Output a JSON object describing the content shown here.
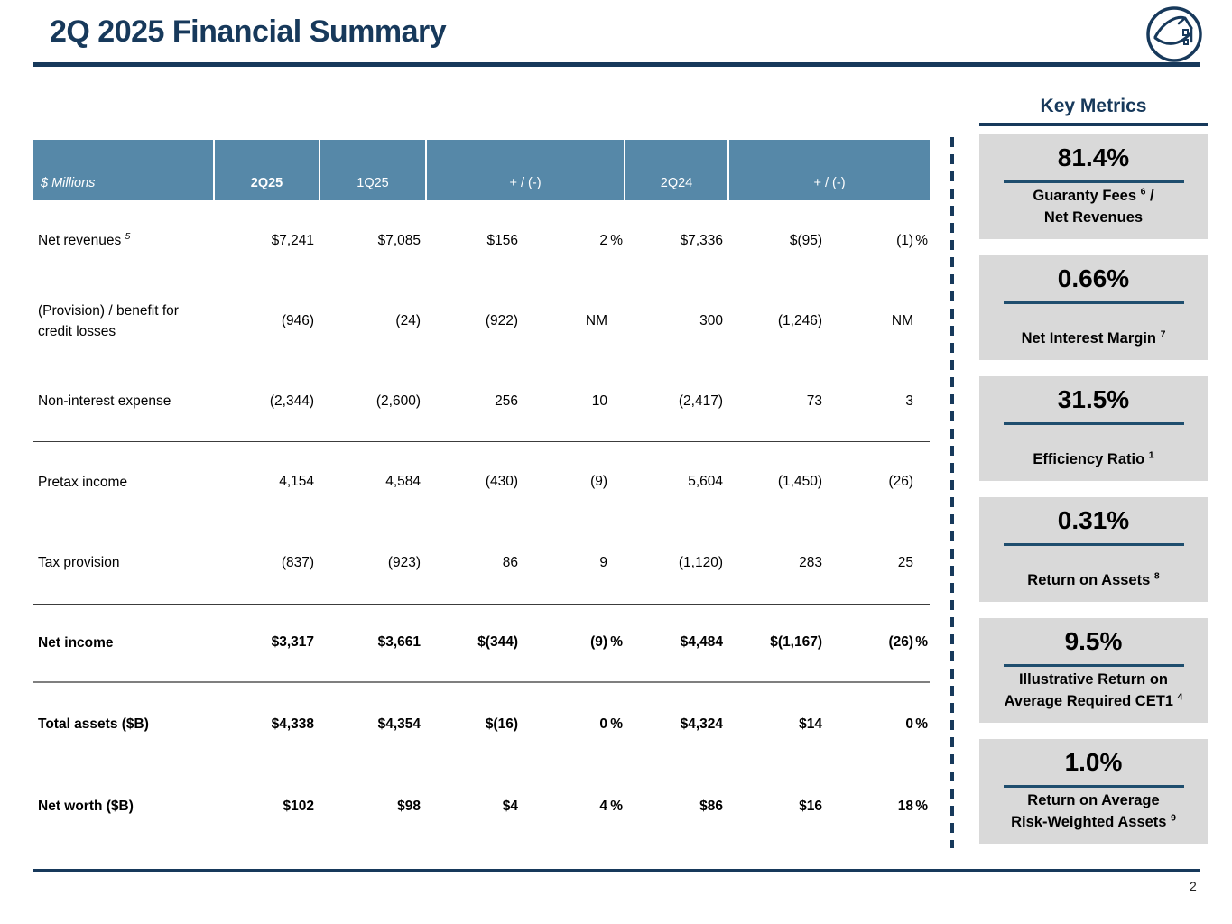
{
  "slide": {
    "title": "2Q 2025 Financial Summary",
    "page_number": "2",
    "logo": "fannie-mae-house-logo"
  },
  "colors": {
    "navy": "#17395B",
    "table_header_blue": "#5688A8",
    "metric_box_gray": "#D9D9D9",
    "metric_line_navy": "#1F4E6E"
  },
  "table": {
    "unit_label": "$ Millions",
    "column_headers": [
      "2Q25",
      "1Q25",
      "+ / (-)",
      "2Q24",
      "+ / (-)"
    ],
    "rows": [
      {
        "label": "Net revenues ^5^",
        "bold": false,
        "cells": [
          "$7,241",
          "$7,085",
          "$156",
          "2",
          "%",
          "$7,336",
          "$(95)",
          "(1)",
          "%"
        ]
      },
      {
        "label": "(Provision) / benefit for credit losses",
        "bold": false,
        "cells": [
          "(946)",
          "(24)",
          "(922)",
          "NM",
          "",
          "300",
          "(1,246)",
          "NM",
          ""
        ]
      },
      {
        "label": "Non-interest expense",
        "bold": false,
        "cells": [
          "(2,344)",
          "(2,600)",
          "256",
          "10",
          "",
          "(2,417)",
          "73",
          "3",
          ""
        ]
      },
      {
        "label": "Pretax income",
        "bold": false,
        "cells": [
          "4,154",
          "4,584",
          "(430)",
          "(9)",
          "",
          "5,604",
          "(1,450)",
          "(26)",
          ""
        ]
      },
      {
        "label": "Tax provision",
        "bold": false,
        "cells": [
          "(837)",
          "(923)",
          "86",
          "9",
          "",
          "(1,120)",
          "283",
          "25",
          ""
        ]
      },
      {
        "label": "Net income",
        "bold": true,
        "cells": [
          "$3,317",
          "$3,661",
          "$(344)",
          "(9)",
          "%",
          "$4,484",
          "$(1,167)",
          "(26)",
          "%"
        ]
      },
      {
        "label": "Total assets ($B)",
        "bold": true,
        "cells": [
          "$4,338",
          "$4,354",
          "$(16)",
          "0",
          "%",
          "$4,324",
          "$14",
          "0",
          "%"
        ]
      },
      {
        "label": "Net worth ($B)",
        "bold": true,
        "cells": [
          "$102",
          "$98",
          "$4",
          "4",
          "%",
          "$86",
          "$16",
          "18",
          "%"
        ]
      }
    ]
  },
  "key_metrics": {
    "title": "Key Metrics",
    "items": [
      {
        "value": "81.4%",
        "label_lines": [
          "Guaranty Fees ^6^ /",
          "Net Revenues"
        ]
      },
      {
        "value": "0.66%",
        "label_lines": [
          "Net Interest Margin ^7^"
        ]
      },
      {
        "value": "31.5%",
        "label_lines": [
          "Efficiency Ratio ^1^"
        ]
      },
      {
        "value": "0.31%",
        "label_lines": [
          "Return on Assets ^8^"
        ]
      },
      {
        "value": "9.5%",
        "label_lines": [
          "Illustrative Return on",
          "Average Required CET1 ^4^"
        ]
      },
      {
        "value": "1.0%",
        "label_lines": [
          "Return on Average",
          "Risk-Weighted Assets ^9^"
        ]
      }
    ]
  }
}
